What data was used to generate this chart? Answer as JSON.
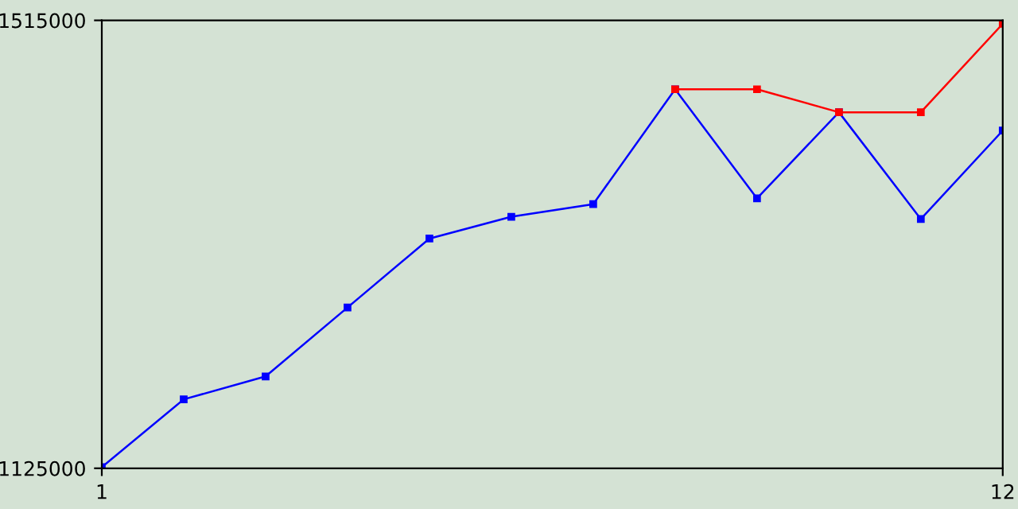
{
  "chart_data": {
    "type": "line",
    "x": [
      1,
      2,
      3,
      4,
      5,
      6,
      7,
      8,
      9,
      10,
      11,
      12
    ],
    "series": [
      {
        "color": "#0000ff",
        "values": [
          1126000,
          1185000,
          1205000,
          1265000,
          1325000,
          1344000,
          1355000,
          1455000,
          1360000,
          1435000,
          1342000,
          1419000
        ]
      },
      {
        "color": "#ff0000",
        "values": [
          null,
          null,
          null,
          null,
          null,
          null,
          null,
          1455000,
          1455000,
          1435000,
          1435000,
          1512000
        ]
      }
    ],
    "xlim": [
      1,
      12
    ],
    "xticks": [
      1,
      12
    ],
    "ylim": [
      1125000,
      1515000
    ],
    "yticks": [
      1125000,
      1515000
    ],
    "grid": false,
    "legend": false,
    "marker": "square",
    "line_style": "solid"
  }
}
